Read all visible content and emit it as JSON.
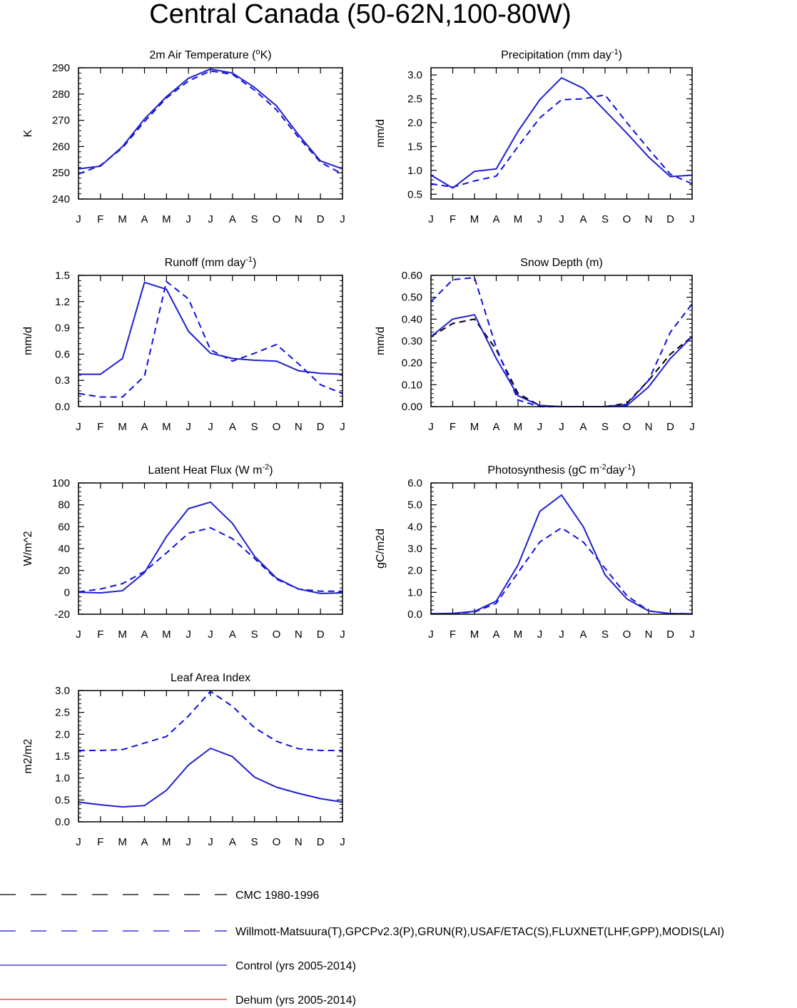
{
  "page_title": "Central Canada (50-62N,100-80W)",
  "colors": {
    "obs_blue": "#1010e0",
    "model_blue": "#2020d0",
    "cmc_black": "#000000",
    "dehum_red": "#e03010"
  },
  "month_labels": [
    "J",
    "F",
    "M",
    "A",
    "M",
    "J",
    "J",
    "A",
    "S",
    "O",
    "N",
    "D",
    "J"
  ],
  "legend": [
    {
      "label": "CMC 1980-1996",
      "style": "dashed",
      "color": "#000000"
    },
    {
      "label": "Willmott-Matsuura(T),GPCPv2.3(P),GRUN(R),USAF/ETAC(S),FLUXNET(LHF,GPP),MODIS(LAI)",
      "style": "dashed",
      "color": "#1010e0"
    },
    {
      "label": "Control (yrs 2005-2014)",
      "style": "solid",
      "color": "#2020d0"
    },
    {
      "label": "Dehum (yrs 2005-2014)",
      "style": "solid",
      "color": "#e03010"
    }
  ],
  "chart_data": [
    {
      "type": "line",
      "title": "2m Air Temperature (",
      "title_sup": "o",
      "title_tail": "K)",
      "ylabel": "K",
      "ylim": [
        240,
        290
      ],
      "yticks": [
        "240",
        "250",
        "260",
        "270",
        "280",
        "290"
      ],
      "x": [
        "J",
        "F",
        "M",
        "A",
        "M",
        "J",
        "J",
        "A",
        "S",
        "O",
        "N",
        "D",
        "J"
      ],
      "series": [
        {
          "name": "Willmott-Matsuura",
          "style": "dashed",
          "color": "#1010e0",
          "values": [
            249.5,
            252.8,
            259.5,
            269.5,
            278.5,
            285.0,
            288.8,
            287.5,
            281.5,
            274.0,
            263.5,
            254.0,
            249.5
          ]
        },
        {
          "name": "Control",
          "style": "solid",
          "color": "#2020d0",
          "values": [
            251.5,
            252.5,
            260.0,
            270.5,
            279.0,
            286.0,
            289.5,
            288.0,
            282.5,
            275.5,
            264.5,
            254.5,
            251.5
          ]
        }
      ]
    },
    {
      "type": "line",
      "title": "Precipitation (mm day",
      "title_sup": "-1",
      "title_tail": ")",
      "ylabel": "mm/d",
      "ylim": [
        0.4,
        3.15
      ],
      "yticks": [
        "0.5",
        "1.0",
        "1.5",
        "2.0",
        "2.5",
        "3.0"
      ],
      "ytick_values": [
        0.5,
        1.0,
        1.5,
        2.0,
        2.5,
        3.0
      ],
      "x": [
        "J",
        "F",
        "M",
        "A",
        "M",
        "J",
        "J",
        "A",
        "S",
        "O",
        "N",
        "D",
        "J"
      ],
      "series": [
        {
          "name": "GPCPv2.3",
          "style": "dashed",
          "color": "#1010e0",
          "values": [
            0.72,
            0.65,
            0.78,
            0.88,
            1.5,
            2.1,
            2.48,
            2.5,
            2.58,
            2.0,
            1.45,
            0.92,
            0.72
          ]
        },
        {
          "name": "Control",
          "style": "solid",
          "color": "#2020d0",
          "values": [
            0.9,
            0.63,
            0.98,
            1.03,
            1.82,
            2.48,
            2.94,
            2.72,
            2.25,
            1.78,
            1.28,
            0.87,
            0.9
          ]
        }
      ]
    },
    {
      "type": "line",
      "title": "Runoff (mm day",
      "title_sup": "-1",
      "title_tail": ")",
      "ylabel": "mm/d",
      "ylim": [
        0.0,
        1.5
      ],
      "yticks": [
        "0.0",
        "0.3",
        "0.6",
        "0.9",
        "1.2",
        "1.5"
      ],
      "x": [
        "J",
        "F",
        "M",
        "A",
        "M",
        "J",
        "J",
        "A",
        "S",
        "O",
        "N",
        "D",
        "J"
      ],
      "series": [
        {
          "name": "GRUN",
          "style": "dashed",
          "color": "#1010e0",
          "values": [
            0.15,
            0.11,
            0.11,
            0.35,
            1.43,
            1.23,
            0.65,
            0.52,
            0.61,
            0.71,
            0.49,
            0.25,
            0.15
          ]
        },
        {
          "name": "Control",
          "style": "solid",
          "color": "#2020d0",
          "values": [
            0.37,
            0.37,
            0.55,
            1.42,
            1.34,
            0.86,
            0.61,
            0.55,
            0.53,
            0.52,
            0.41,
            0.38,
            0.37
          ]
        }
      ]
    },
    {
      "type": "line",
      "title": "Snow Depth (m)",
      "title_sup": "",
      "title_tail": "",
      "ylabel": "mm/d",
      "ylim": [
        0.0,
        0.6
      ],
      "yticks": [
        "0.00",
        "0.10",
        "0.20",
        "0.30",
        "0.40",
        "0.50",
        "0.60"
      ],
      "x": [
        "J",
        "F",
        "M",
        "A",
        "M",
        "J",
        "J",
        "A",
        "S",
        "O",
        "N",
        "D",
        "J"
      ],
      "series": [
        {
          "name": "CMC",
          "style": "dashed",
          "color": "#000000",
          "values": [
            0.32,
            0.38,
            0.4,
            0.26,
            0.06,
            0.005,
            0.0,
            0.0,
            0.0,
            0.015,
            0.12,
            0.24,
            0.32
          ]
        },
        {
          "name": "USAF/ETAC",
          "style": "dashed",
          "color": "#1010e0",
          "values": [
            0.48,
            0.58,
            0.59,
            0.27,
            0.03,
            0.0,
            0.0,
            0.0,
            0.0,
            0.01,
            0.12,
            0.34,
            0.47
          ]
        },
        {
          "name": "Control",
          "style": "solid",
          "color": "#2020d0",
          "values": [
            0.32,
            0.4,
            0.42,
            0.22,
            0.05,
            0.005,
            0.0,
            0.0,
            0.0,
            0.005,
            0.09,
            0.22,
            0.32
          ]
        }
      ]
    },
    {
      "type": "line",
      "title": "Latent Heat Flux (W m",
      "title_sup": "-2",
      "title_tail": ")",
      "ylabel": "W/m^2",
      "ylim": [
        -20,
        100
      ],
      "yticks": [
        "-20",
        "0",
        "20",
        "40",
        "60",
        "80",
        "100"
      ],
      "x": [
        "J",
        "F",
        "M",
        "A",
        "M",
        "J",
        "J",
        "A",
        "S",
        "O",
        "N",
        "D",
        "J"
      ],
      "series": [
        {
          "name": "FLUXNET",
          "style": "dashed",
          "color": "#1010e0",
          "values": [
            0.5,
            3.0,
            8.0,
            19.0,
            36.0,
            54.0,
            59.0,
            49.0,
            31.0,
            12.0,
            3.0,
            1.0,
            1.0
          ]
        },
        {
          "name": "Control",
          "style": "solid",
          "color": "#2020d0",
          "values": [
            0.0,
            -0.5,
            1.5,
            18.0,
            51.0,
            76.5,
            82.5,
            63.0,
            33.0,
            13.0,
            3.0,
            -1.0,
            -0.5
          ]
        }
      ]
    },
    {
      "type": "line",
      "title": "Photosynthesis (gC m",
      "title_sup": "-2",
      "title_tail": "day",
      "title_sup2": "-1",
      "title_tail2": ")",
      "ylabel": "gC/m2d",
      "ylim": [
        0.0,
        6.0
      ],
      "yticks": [
        "0.0",
        "1.0",
        "2.0",
        "3.0",
        "4.0",
        "5.0",
        "6.0"
      ],
      "x": [
        "J",
        "F",
        "M",
        "A",
        "M",
        "J",
        "J",
        "A",
        "S",
        "O",
        "N",
        "D",
        "J"
      ],
      "series": [
        {
          "name": "FLUXNET",
          "style": "dashed",
          "color": "#1010e0",
          "values": [
            0.02,
            0.03,
            0.1,
            0.5,
            1.9,
            3.3,
            3.95,
            3.3,
            2.1,
            0.85,
            0.15,
            0.03,
            0.02
          ]
        },
        {
          "name": "Control",
          "style": "solid",
          "color": "#2020d0",
          "values": [
            0.02,
            0.04,
            0.13,
            0.6,
            2.25,
            4.7,
            5.45,
            4.0,
            1.8,
            0.7,
            0.15,
            0.03,
            0.02
          ]
        }
      ]
    },
    {
      "type": "line",
      "title": "Leaf Area Index",
      "title_sup": "",
      "title_tail": "",
      "ylabel": "m2/m2",
      "ylim": [
        0.0,
        3.0
      ],
      "yticks": [
        "0.0",
        "0.5",
        "1.0",
        "1.5",
        "2.0",
        "2.5",
        "3.0"
      ],
      "x": [
        "J",
        "F",
        "M",
        "A",
        "M",
        "J",
        "J",
        "A",
        "S",
        "O",
        "N",
        "D",
        "J"
      ],
      "series": [
        {
          "name": "MODIS",
          "style": "dashed",
          "color": "#1010e0",
          "values": [
            1.63,
            1.63,
            1.65,
            1.8,
            1.95,
            2.42,
            2.98,
            2.64,
            2.15,
            1.84,
            1.67,
            1.63,
            1.63
          ]
        },
        {
          "name": "Control",
          "style": "solid",
          "color": "#2020d0",
          "values": [
            0.45,
            0.39,
            0.34,
            0.37,
            0.72,
            1.3,
            1.68,
            1.49,
            1.02,
            0.79,
            0.65,
            0.53,
            0.45
          ]
        }
      ]
    }
  ]
}
